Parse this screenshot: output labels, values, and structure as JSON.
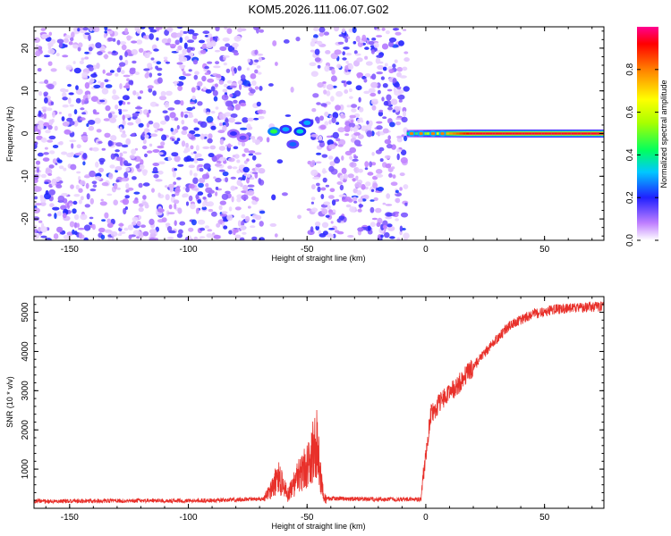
{
  "title": "KOM5.2026.111.06.07.G02",
  "chart_data": [
    {
      "type": "heatmap",
      "name": "spectrogram",
      "xlabel": "Height of straight line (km)",
      "ylabel": "Frequency (Hz)",
      "xlim": [
        -165,
        75
      ],
      "ylim": [
        -25,
        25
      ],
      "xticks": [
        -150,
        -100,
        -50,
        0,
        50
      ],
      "yticks": [
        -20,
        -10,
        0,
        10,
        20
      ],
      "regions": [
        {
          "x_from": -165,
          "x_to": -69,
          "content": "noise",
          "density": 1.0
        },
        {
          "x_from": -69,
          "x_to": -48,
          "content": "sparse",
          "density": 0.08
        },
        {
          "x_from": -48,
          "x_to": -8,
          "content": "noise",
          "density": 1.0
        },
        {
          "x_from": -8,
          "x_to": 75,
          "content": "empty",
          "density": 0.0
        }
      ],
      "signal_blobs": [
        {
          "x": -81,
          "f": 0,
          "amp": 0.18
        },
        {
          "x": -77,
          "f": -1,
          "amp": 0.15
        },
        {
          "x": -64,
          "f": 0.5,
          "amp": 0.45
        },
        {
          "x": -59,
          "f": 1,
          "amp": 0.3
        },
        {
          "x": -56,
          "f": -2.5,
          "amp": 0.25
        },
        {
          "x": -53,
          "f": 0.5,
          "amp": 0.35
        },
        {
          "x": -50,
          "f": 2.5,
          "amp": 0.3
        }
      ],
      "tone": {
        "x_from": -8,
        "x_to": 75,
        "f": 0,
        "amp_start": 0.4,
        "amp_end": 0.95
      },
      "colorbar": {
        "label": "Normalized spectral amplitude",
        "range": [
          0.0,
          1.0
        ],
        "ticks": [
          0.0,
          0.2,
          0.4,
          0.6,
          0.8
        ],
        "tick_labels": [
          "0.0",
          "0.2",
          "0.4",
          "0.6",
          "0.8"
        ]
      }
    },
    {
      "type": "line",
      "name": "snr",
      "xlabel": "Height of straight line (km)",
      "ylabel": "SNR (10 * v/v)",
      "xlim": [
        -165,
        75
      ],
      "ylim": [
        0,
        5400
      ],
      "xticks": [
        -150,
        -100,
        -50,
        0,
        50
      ],
      "yticks": [
        1000,
        2000,
        3000,
        4000,
        5000
      ],
      "color": "#e8302a",
      "series_keypoints": [
        {
          "x": -165,
          "snr": 180
        },
        {
          "x": -90,
          "snr": 200
        },
        {
          "x": -68,
          "snr": 240
        },
        {
          "x": -65,
          "snr": 500
        },
        {
          "x": -62,
          "snr": 800
        },
        {
          "x": -58,
          "snr": 350
        },
        {
          "x": -55,
          "snr": 700
        },
        {
          "x": -50,
          "snr": 1100
        },
        {
          "x": -46,
          "snr": 1700
        },
        {
          "x": -43,
          "snr": 250
        },
        {
          "x": -20,
          "snr": 230
        },
        {
          "x": -2,
          "snr": 230
        },
        {
          "x": -1,
          "snr": 900
        },
        {
          "x": 2,
          "snr": 2400
        },
        {
          "x": 6,
          "snr": 2700
        },
        {
          "x": 12,
          "snr": 3050
        },
        {
          "x": 20,
          "snr": 3600
        },
        {
          "x": 28,
          "snr": 4200
        },
        {
          "x": 36,
          "snr": 4700
        },
        {
          "x": 45,
          "snr": 4950
        },
        {
          "x": 55,
          "snr": 5080
        },
        {
          "x": 75,
          "snr": 5150
        }
      ]
    }
  ]
}
